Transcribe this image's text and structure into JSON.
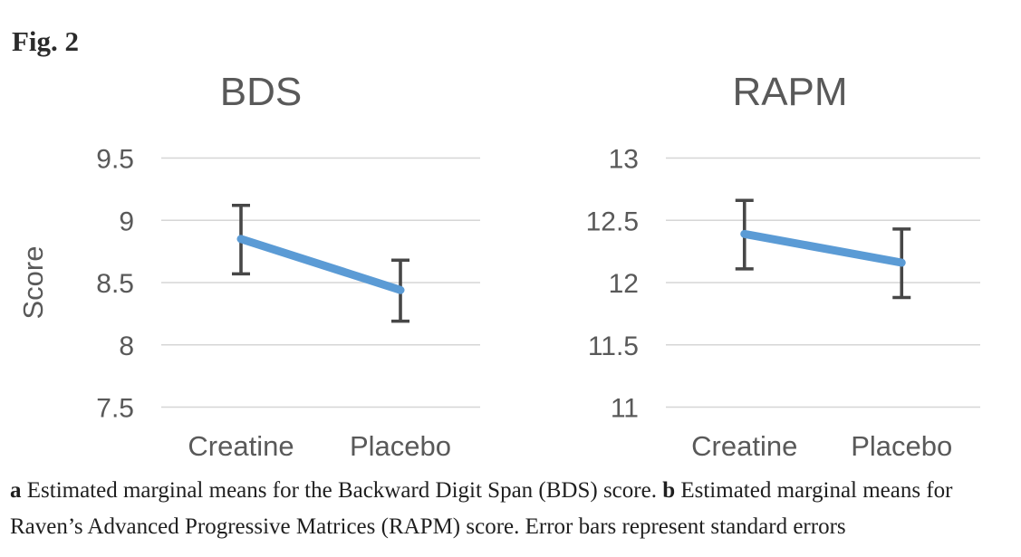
{
  "figure": {
    "label": "Fig. 2",
    "caption_parts": [
      {
        "text": "a",
        "bold": true
      },
      {
        "text": " Estimated marginal means for the Backward Digit Span (BDS) score. ",
        "bold": false
      },
      {
        "text": "b",
        "bold": true
      },
      {
        "text": " Estimated marginal means for Raven’s Advanced Progressive Matrices (RAPM) score. Error bars represent standard errors",
        "bold": false
      }
    ]
  },
  "colors": {
    "line": "#5b9bd5",
    "error_bar": "#474747",
    "gridline": "#d6d6d6",
    "axis_text": "#595959",
    "title_text": "#595959",
    "caption_text": "#1f1f1f"
  },
  "chart_data": [
    {
      "type": "line",
      "title": "BDS",
      "ylabel": "Score",
      "xlabel": "",
      "categories": [
        "Creatine",
        "Placebo"
      ],
      "series": [
        {
          "values": [
            8.85,
            8.44
          ],
          "error_upper": [
            9.12,
            8.68
          ],
          "error_lower": [
            8.57,
            8.19
          ]
        }
      ],
      "ylim": [
        7.5,
        9.5
      ],
      "ytick_step": 0.5,
      "ytick_labels": [
        "9.5",
        "9",
        "8.5",
        "8",
        "7.5"
      ],
      "grid": true,
      "legend": false,
      "error_bars": "standard errors"
    },
    {
      "type": "line",
      "title": "RAPM",
      "ylabel": "",
      "xlabel": "",
      "categories": [
        "Creatine",
        "Placebo"
      ],
      "series": [
        {
          "values": [
            12.39,
            12.16
          ],
          "error_upper": [
            12.66,
            12.43
          ],
          "error_lower": [
            12.11,
            11.88
          ]
        }
      ],
      "ylim": [
        11,
        13
      ],
      "ytick_step": 0.5,
      "ytick_labels": [
        "13",
        "12.5",
        "12",
        "11.5",
        "11"
      ],
      "grid": true,
      "legend": false,
      "error_bars": "standard errors"
    }
  ]
}
